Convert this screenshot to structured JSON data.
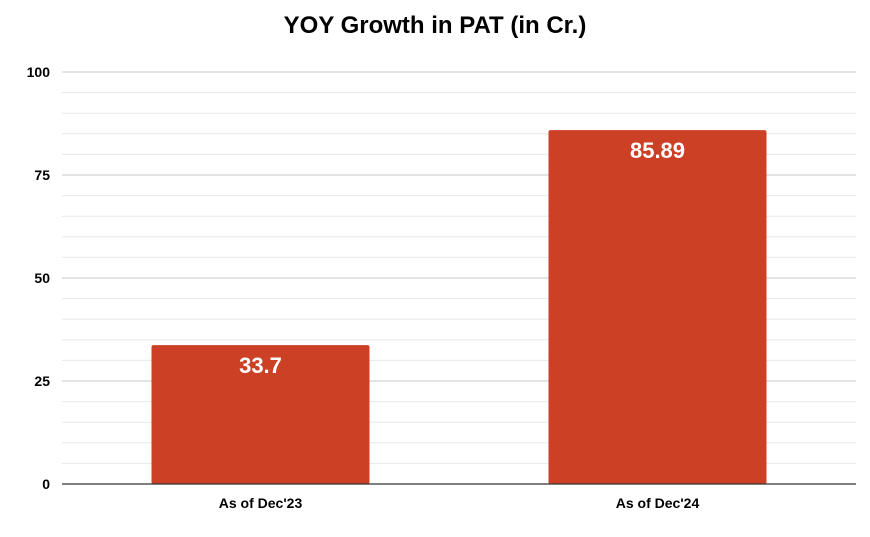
{
  "chart_data": {
    "type": "bar",
    "title": "YOY Growth in PAT (in Cr.)",
    "xlabel": "",
    "ylabel": "",
    "categories": [
      "As of Dec'23",
      "As of Dec'24"
    ],
    "values": [
      33.7,
      85.89
    ],
    "data_labels": [
      "33.7",
      "85.89"
    ],
    "ylim": [
      0,
      100
    ],
    "y_ticks": [
      0,
      25,
      50,
      75,
      100
    ],
    "y_tick_labels": [
      "0",
      "25",
      "50",
      "75",
      "100"
    ],
    "grid": true,
    "legend": "none",
    "colors": {
      "bar": "#cc4125",
      "label": "#ffffff",
      "grid_major": "#c8c8c8",
      "grid_minor": "#e8e8e8",
      "axis": "#333333"
    }
  }
}
